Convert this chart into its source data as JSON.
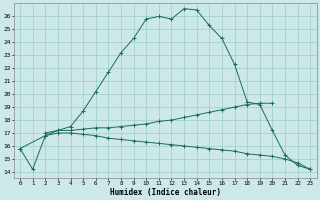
{
  "xlabel": "Humidex (Indice chaleur)",
  "background_color": "#cce8e8",
  "line_color": "#1a6b5a",
  "grid_color": "#9ecece",
  "xlim": [
    -0.5,
    23.5
  ],
  "ylim": [
    13.5,
    27.0
  ],
  "x_ticks": [
    0,
    1,
    2,
    3,
    4,
    5,
    6,
    7,
    8,
    9,
    10,
    11,
    12,
    13,
    14,
    15,
    16,
    17,
    18,
    19,
    20,
    21,
    22,
    23
  ],
  "y_ticks": [
    14,
    15,
    16,
    17,
    18,
    19,
    20,
    21,
    22,
    23,
    24,
    25,
    26
  ],
  "curve1_x": [
    0,
    1,
    2,
    3,
    4,
    5,
    6,
    7,
    8,
    9,
    10,
    11,
    12,
    13,
    14,
    15,
    16,
    17,
    18,
    19,
    20,
    21,
    22,
    23
  ],
  "curve1_y": [
    15.8,
    14.2,
    16.8,
    17.2,
    17.5,
    18.7,
    20.2,
    21.7,
    23.2,
    24.3,
    25.8,
    26.0,
    25.8,
    26.6,
    26.5,
    25.3,
    24.3,
    22.3,
    19.4,
    19.2,
    17.2,
    15.3,
    14.5,
    14.2
  ],
  "curve2_x": [
    2,
    3,
    4,
    5,
    6,
    7,
    8,
    9,
    10,
    11,
    12,
    13,
    14,
    15,
    16,
    17,
    18,
    19,
    20
  ],
  "curve2_y": [
    17.0,
    17.2,
    17.2,
    17.3,
    17.4,
    17.4,
    17.5,
    17.6,
    17.7,
    17.9,
    18.0,
    18.2,
    18.4,
    18.6,
    18.8,
    19.0,
    19.2,
    19.3,
    19.3
  ],
  "curve3_x": [
    0,
    2,
    3,
    4,
    5,
    6,
    7,
    8,
    9,
    10,
    11,
    12,
    13,
    14,
    15,
    16,
    17,
    18,
    19,
    20,
    21,
    22,
    23
  ],
  "curve3_y": [
    15.8,
    16.8,
    17.0,
    17.0,
    16.9,
    16.8,
    16.6,
    16.5,
    16.4,
    16.3,
    16.2,
    16.1,
    16.0,
    15.9,
    15.8,
    15.7,
    15.6,
    15.4,
    15.3,
    15.2,
    15.0,
    14.7,
    14.2
  ]
}
